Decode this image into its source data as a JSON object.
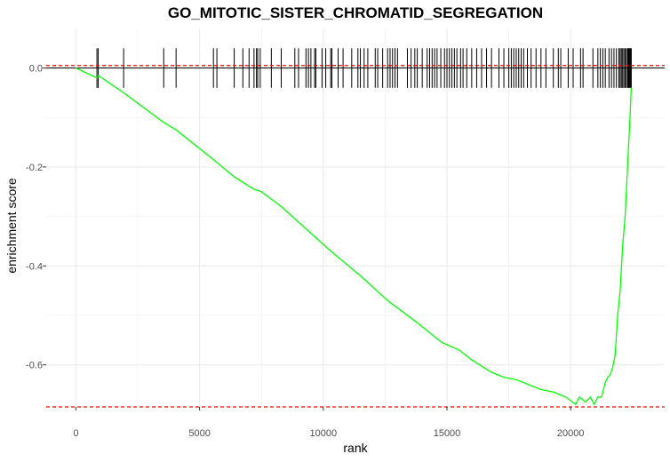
{
  "chart_data": {
    "type": "line",
    "title": "GO_MITOTIC_SISTER_CHROMATID_SEGREGATION",
    "xlabel": "rank",
    "ylabel": "enrichment score",
    "xlim": [
      -1200,
      23800
    ],
    "ylim": [
      -0.685,
      0.08
    ],
    "x_ticks": [
      0,
      5000,
      10000,
      15000,
      20000
    ],
    "x_tick_labels": [
      "0",
      "5000",
      "10000",
      "15000",
      "20000"
    ],
    "y_ticks": [
      0.0,
      -0.2,
      -0.4,
      -0.6
    ],
    "y_tick_labels": [
      "0.0",
      "-0.2",
      "-0.4",
      "-0.6"
    ],
    "grid": true,
    "colors": {
      "curve": "#00ff00",
      "threshold": "#ff0000",
      "hits": "#000000",
      "grid": "#ebebeb"
    },
    "reference_lines": {
      "upper": 0.005,
      "lower": -0.685
    },
    "hit_ticks": {
      "y_top": 0.04,
      "y_bottom": -0.04,
      "positions": [
        850,
        900,
        1930,
        3550,
        4050,
        5560,
        5700,
        6400,
        6750,
        7000,
        7200,
        7300,
        7350,
        7450,
        7900,
        8300,
        8850,
        9000,
        9300,
        9400,
        9500,
        9650,
        9700,
        9950,
        10100,
        10300,
        10350,
        10600,
        10800,
        11150,
        11400,
        11500,
        11650,
        11800,
        12100,
        12200,
        12400,
        12600,
        12700,
        12800,
        12900,
        13000,
        13400,
        13550,
        13700,
        13800,
        14000,
        14200,
        14300,
        14400,
        14500,
        14600,
        14750,
        14900,
        15000,
        15100,
        15200,
        15300,
        15400,
        15550,
        15650,
        15800,
        16000,
        16200,
        16400,
        16600,
        16800,
        17100,
        17300,
        17500,
        17600,
        17700,
        17800,
        17900,
        18000,
        18100,
        18250,
        18400,
        18600,
        18800,
        19000,
        19300,
        19500,
        19600,
        19900,
        20100,
        20400,
        20500,
        20900,
        21100,
        21200,
        21300,
        21400,
        21550,
        21650,
        21750,
        21850,
        21950,
        22000,
        22050,
        22100,
        22150,
        22200,
        22250,
        22300,
        22330,
        22360,
        22390,
        22420,
        22450
      ]
    },
    "series": [
      {
        "x": [
          0,
          850,
          900,
          1930,
          3550,
          4050,
          5560,
          6400,
          7200,
          7500,
          8300,
          9300,
          10300,
          11500,
          12600,
          13800,
          14800,
          15500,
          16000,
          16800,
          17300,
          17800,
          18300,
          18800,
          19300,
          19800,
          20200,
          20350,
          20600,
          20800,
          20950,
          21100,
          21250,
          21400,
          21500,
          21600,
          21700,
          21800,
          21900,
          22000,
          22100,
          22200,
          22300,
          22400,
          22450
        ],
        "y": [
          0.0,
          -0.02,
          -0.015,
          -0.05,
          -0.11,
          -0.125,
          -0.185,
          -0.22,
          -0.245,
          -0.25,
          -0.28,
          -0.325,
          -0.37,
          -0.42,
          -0.47,
          -0.515,
          -0.555,
          -0.57,
          -0.59,
          -0.615,
          -0.625,
          -0.63,
          -0.64,
          -0.65,
          -0.655,
          -0.665,
          -0.68,
          -0.665,
          -0.675,
          -0.665,
          -0.68,
          -0.665,
          -0.665,
          -0.635,
          -0.625,
          -0.62,
          -0.605,
          -0.58,
          -0.5,
          -0.45,
          -0.36,
          -0.3,
          -0.2,
          -0.1,
          -0.04
        ]
      }
    ]
  }
}
